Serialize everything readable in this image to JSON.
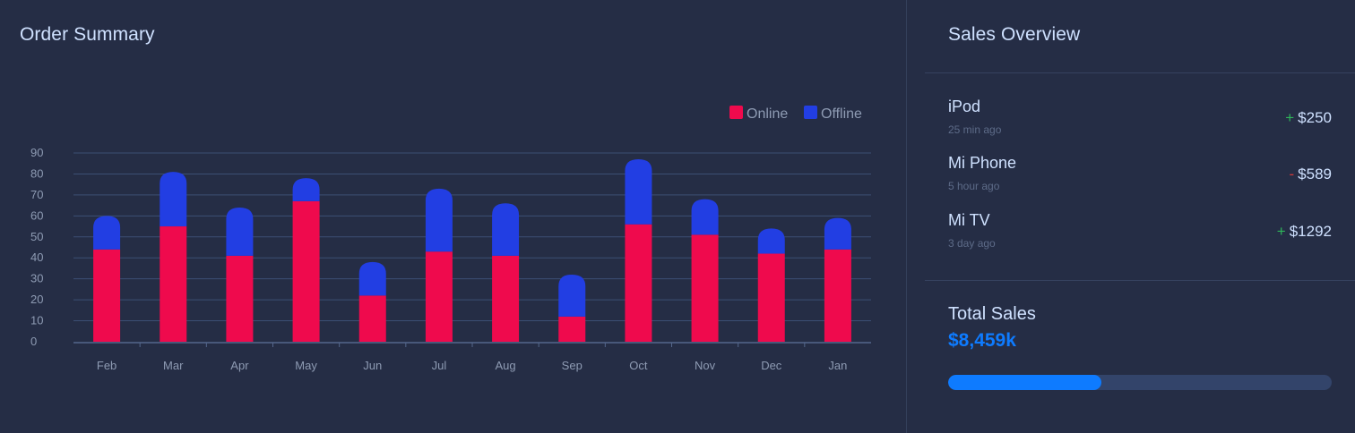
{
  "order_summary": {
    "title": "Order Summary"
  },
  "sales_overview": {
    "title": "Sales Overview",
    "items": [
      {
        "name": "iPod",
        "time": "25 min ago",
        "sign": "+",
        "amount": "$250"
      },
      {
        "name": "Mi Phone",
        "time": "5 hour ago",
        "sign": "-",
        "amount": "$589"
      },
      {
        "name": "Mi TV",
        "time": "3 day ago",
        "sign": "+",
        "amount": "$1292"
      }
    ],
    "total_label": "Total Sales",
    "total_value": "$8,459k",
    "progress_fraction": 0.4
  },
  "colors": {
    "online": "#ef0a4d",
    "offline": "#223ee3",
    "accent": "#0e7bff",
    "positive": "#2fb55a",
    "negative": "#d33a3a"
  },
  "chart_data": {
    "type": "bar",
    "stacked": true,
    "categories": [
      "Feb",
      "Mar",
      "Apr",
      "May",
      "Jun",
      "Jul",
      "Aug",
      "Sep",
      "Oct",
      "Nov",
      "Dec",
      "Jan"
    ],
    "series": [
      {
        "name": "Online",
        "color": "#ef0a4d",
        "values": [
          44,
          55,
          41,
          67,
          22,
          43,
          41,
          12,
          56,
          51,
          42,
          44
        ]
      },
      {
        "name": "Offline",
        "color": "#223ee3",
        "values": [
          16,
          26,
          23,
          11,
          16,
          30,
          25,
          20,
          31,
          17,
          12,
          15
        ]
      }
    ],
    "yticks": [
      0,
      10,
      20,
      30,
      40,
      50,
      60,
      70,
      80,
      90
    ],
    "ylim": [
      0,
      90
    ],
    "grid": true,
    "legend_position": "top-right"
  }
}
